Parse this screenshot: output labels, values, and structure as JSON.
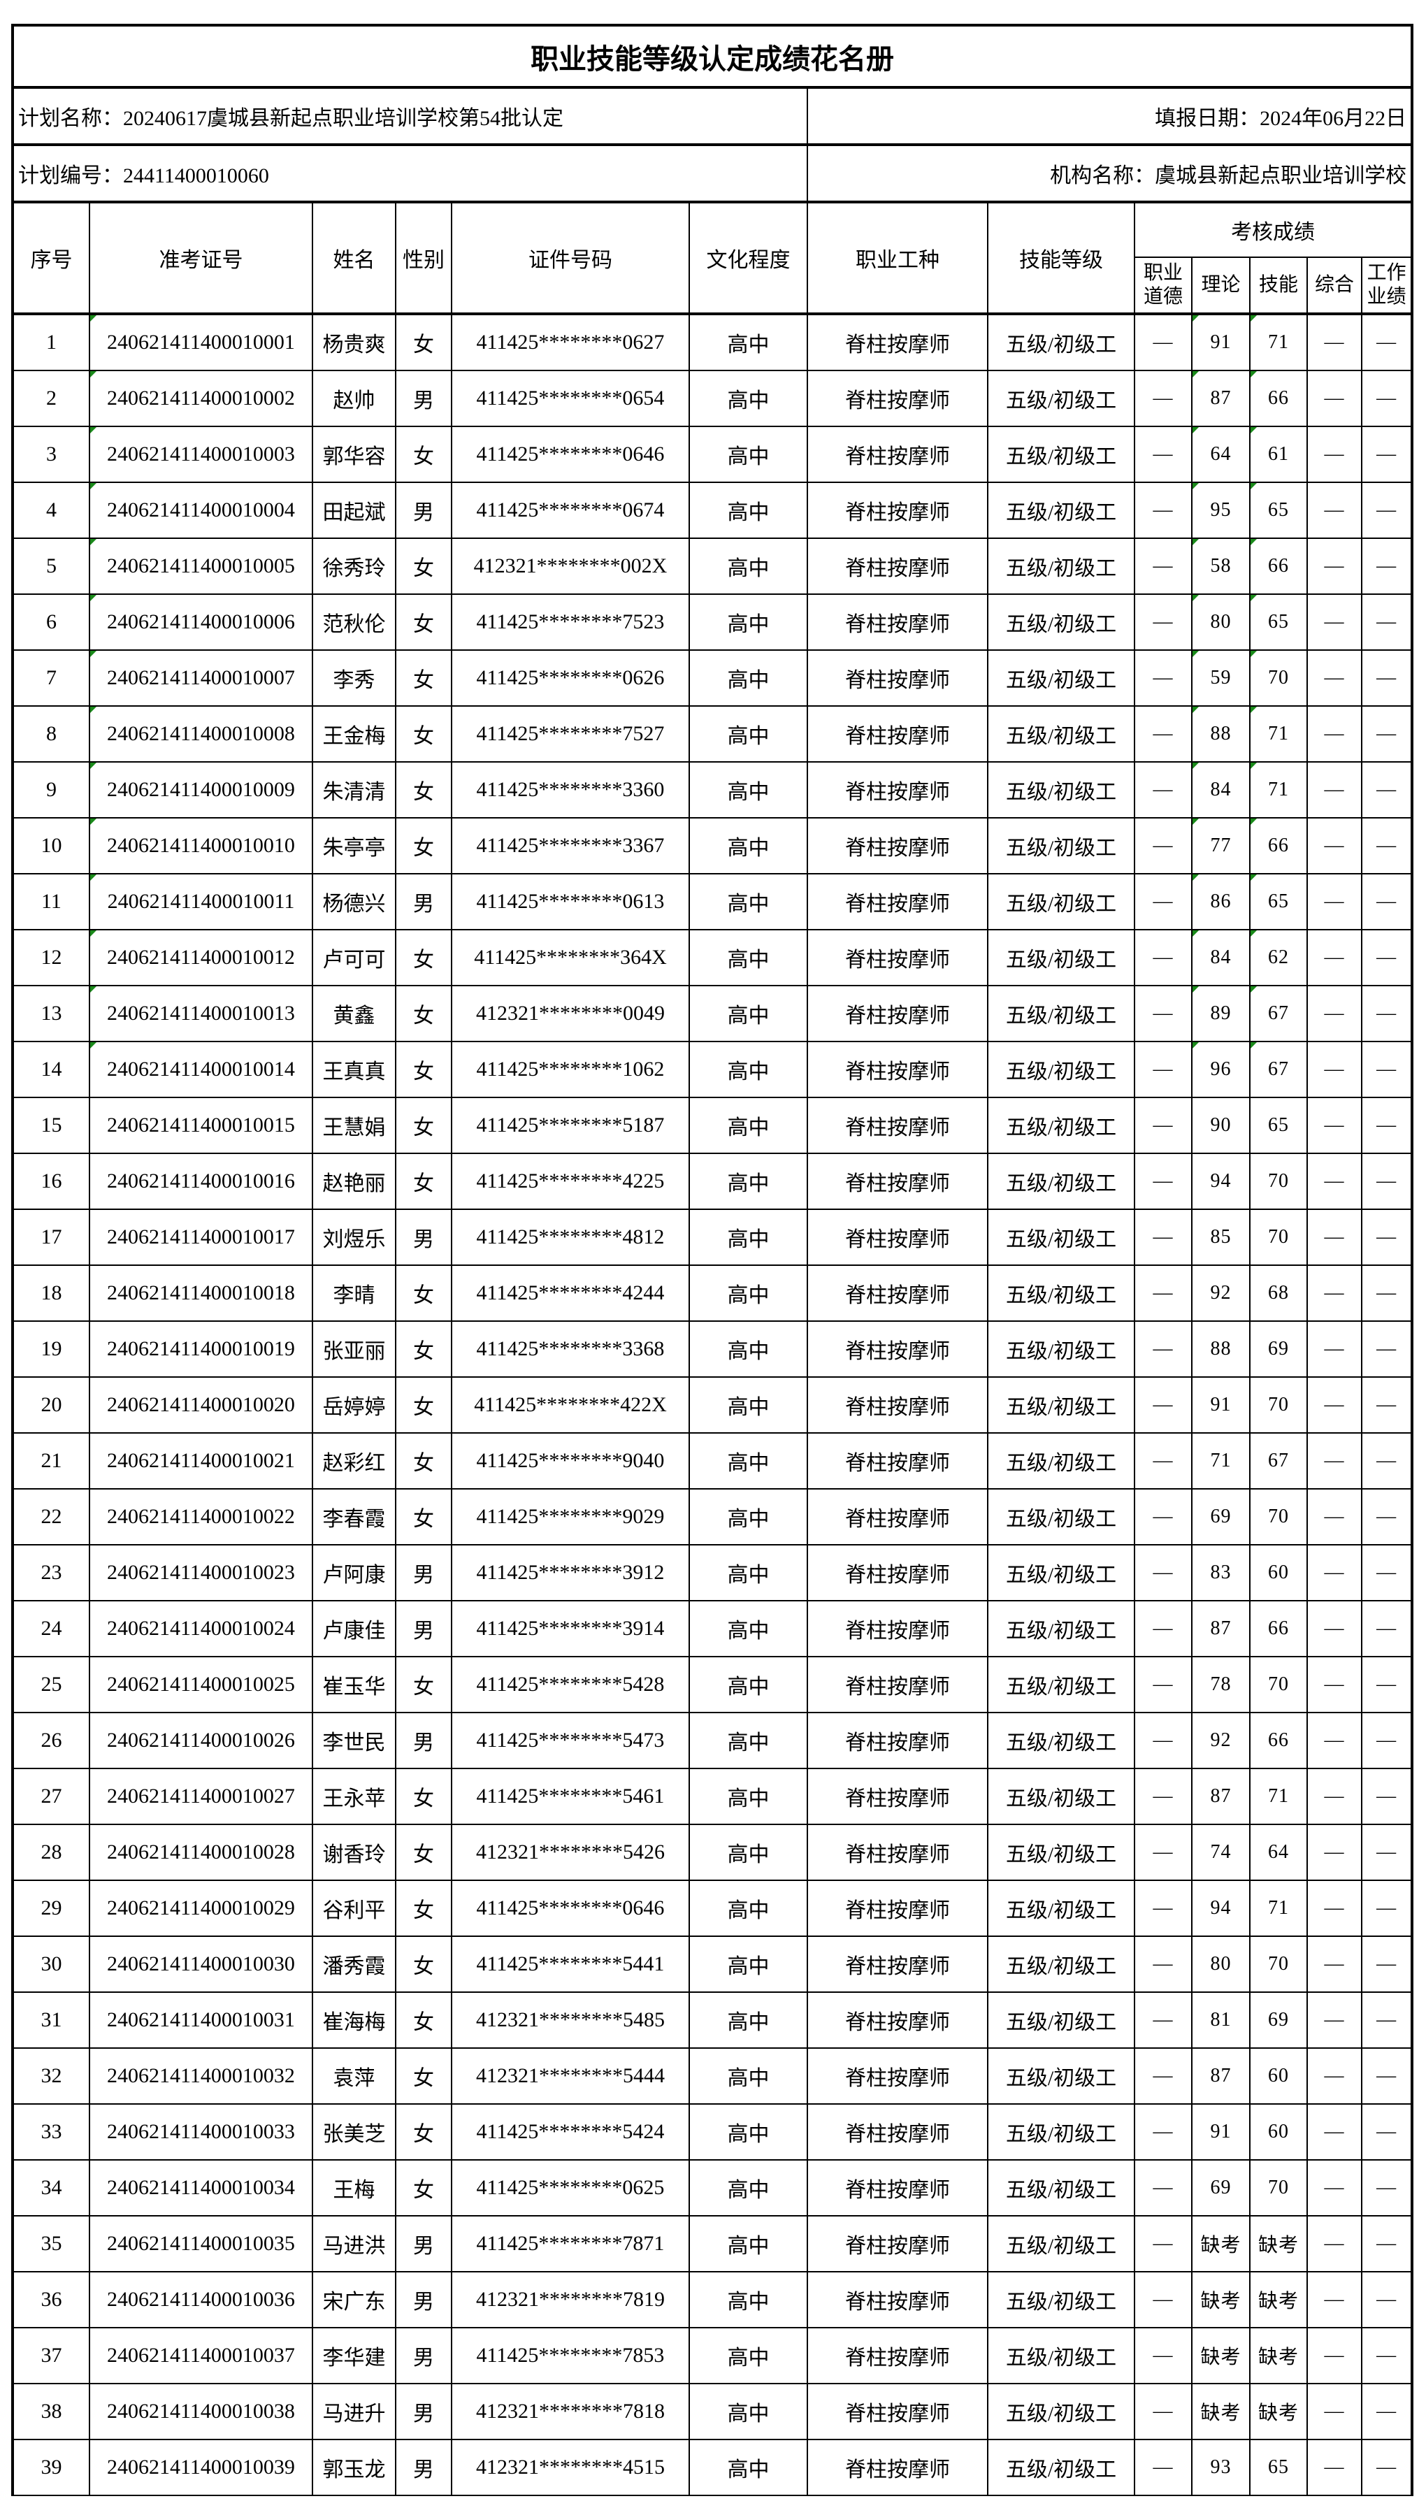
{
  "title": "职业技能等级认定成绩花名册",
  "plan_name": "计划名称：20240617虞城县新起点职业培训学校第54批认定",
  "report_date": "填报日期：2024年06月22日",
  "plan_number": "计划编号：24411400010060",
  "org_name": "机构名称：虞城县新起点职业培训学校",
  "headers": {
    "seq": "序号",
    "exam_no": "准考证号",
    "name": "姓名",
    "gender": "性别",
    "id_no": "证件号码",
    "education": "文化程度",
    "occupation": "职业工种",
    "skill_level": "技能等级",
    "scores": "考核成绩",
    "ethics": "职业道德",
    "theory": "理论",
    "skill": "技能",
    "overall": "综合",
    "performance": "工作业绩"
  },
  "marker_color": "#1a8a1a",
  "rows": [
    [
      "1",
      "240621411400010001",
      "杨贵爽",
      "女",
      "411425********0627",
      "高中",
      "脊柱按摩师",
      "五级/初级工",
      "—",
      "91",
      "71",
      "—",
      "—"
    ],
    [
      "2",
      "240621411400010002",
      "赵帅",
      "男",
      "411425********0654",
      "高中",
      "脊柱按摩师",
      "五级/初级工",
      "—",
      "87",
      "66",
      "—",
      "—"
    ],
    [
      "3",
      "240621411400010003",
      "郭华容",
      "女",
      "411425********0646",
      "高中",
      "脊柱按摩师",
      "五级/初级工",
      "—",
      "64",
      "61",
      "—",
      "—"
    ],
    [
      "4",
      "240621411400010004",
      "田起斌",
      "男",
      "411425********0674",
      "高中",
      "脊柱按摩师",
      "五级/初级工",
      "—",
      "95",
      "65",
      "—",
      "—"
    ],
    [
      "5",
      "240621411400010005",
      "徐秀玲",
      "女",
      "412321********002X",
      "高中",
      "脊柱按摩师",
      "五级/初级工",
      "—",
      "58",
      "66",
      "—",
      "—"
    ],
    [
      "6",
      "240621411400010006",
      "范秋伦",
      "女",
      "411425********7523",
      "高中",
      "脊柱按摩师",
      "五级/初级工",
      "—",
      "80",
      "65",
      "—",
      "—"
    ],
    [
      "7",
      "240621411400010007",
      "李秀",
      "女",
      "411425********0626",
      "高中",
      "脊柱按摩师",
      "五级/初级工",
      "—",
      "59",
      "70",
      "—",
      "—"
    ],
    [
      "8",
      "240621411400010008",
      "王金梅",
      "女",
      "411425********7527",
      "高中",
      "脊柱按摩师",
      "五级/初级工",
      "—",
      "88",
      "71",
      "—",
      "—"
    ],
    [
      "9",
      "240621411400010009",
      "朱清清",
      "女",
      "411425********3360",
      "高中",
      "脊柱按摩师",
      "五级/初级工",
      "—",
      "84",
      "71",
      "—",
      "—"
    ],
    [
      "10",
      "240621411400010010",
      "朱亭亭",
      "女",
      "411425********3367",
      "高中",
      "脊柱按摩师",
      "五级/初级工",
      "—",
      "77",
      "66",
      "—",
      "—"
    ],
    [
      "11",
      "240621411400010011",
      "杨德兴",
      "男",
      "411425********0613",
      "高中",
      "脊柱按摩师",
      "五级/初级工",
      "—",
      "86",
      "65",
      "—",
      "—"
    ],
    [
      "12",
      "240621411400010012",
      "卢可可",
      "女",
      "411425********364X",
      "高中",
      "脊柱按摩师",
      "五级/初级工",
      "—",
      "84",
      "62",
      "—",
      "—"
    ],
    [
      "13",
      "240621411400010013",
      "黄鑫",
      "女",
      "412321********0049",
      "高中",
      "脊柱按摩师",
      "五级/初级工",
      "—",
      "89",
      "67",
      "—",
      "—"
    ],
    [
      "14",
      "240621411400010014",
      "王真真",
      "女",
      "411425********1062",
      "高中",
      "脊柱按摩师",
      "五级/初级工",
      "—",
      "96",
      "67",
      "—",
      "—"
    ],
    [
      "15",
      "240621411400010015",
      "王慧娟",
      "女",
      "411425********5187",
      "高中",
      "脊柱按摩师",
      "五级/初级工",
      "—",
      "90",
      "65",
      "—",
      "—"
    ],
    [
      "16",
      "240621411400010016",
      "赵艳丽",
      "女",
      "411425********4225",
      "高中",
      "脊柱按摩师",
      "五级/初级工",
      "—",
      "94",
      "70",
      "—",
      "—"
    ],
    [
      "17",
      "240621411400010017",
      "刘煜乐",
      "男",
      "411425********4812",
      "高中",
      "脊柱按摩师",
      "五级/初级工",
      "—",
      "85",
      "70",
      "—",
      "—"
    ],
    [
      "18",
      "240621411400010018",
      "李晴",
      "女",
      "411425********4244",
      "高中",
      "脊柱按摩师",
      "五级/初级工",
      "—",
      "92",
      "68",
      "—",
      "—"
    ],
    [
      "19",
      "240621411400010019",
      "张亚丽",
      "女",
      "411425********3368",
      "高中",
      "脊柱按摩师",
      "五级/初级工",
      "—",
      "88",
      "69",
      "—",
      "—"
    ],
    [
      "20",
      "240621411400010020",
      "岳婷婷",
      "女",
      "411425********422X",
      "高中",
      "脊柱按摩师",
      "五级/初级工",
      "—",
      "91",
      "70",
      "—",
      "—"
    ],
    [
      "21",
      "240621411400010021",
      "赵彩红",
      "女",
      "411425********9040",
      "高中",
      "脊柱按摩师",
      "五级/初级工",
      "—",
      "71",
      "67",
      "—",
      "—"
    ],
    [
      "22",
      "240621411400010022",
      "李春霞",
      "女",
      "411425********9029",
      "高中",
      "脊柱按摩师",
      "五级/初级工",
      "—",
      "69",
      "70",
      "—",
      "—"
    ],
    [
      "23",
      "240621411400010023",
      "卢阿康",
      "男",
      "411425********3912",
      "高中",
      "脊柱按摩师",
      "五级/初级工",
      "—",
      "83",
      "60",
      "—",
      "—"
    ],
    [
      "24",
      "240621411400010024",
      "卢康佳",
      "男",
      "411425********3914",
      "高中",
      "脊柱按摩师",
      "五级/初级工",
      "—",
      "87",
      "66",
      "—",
      "—"
    ],
    [
      "25",
      "240621411400010025",
      "崔玉华",
      "女",
      "411425********5428",
      "高中",
      "脊柱按摩师",
      "五级/初级工",
      "—",
      "78",
      "70",
      "—",
      "—"
    ],
    [
      "26",
      "240621411400010026",
      "李世民",
      "男",
      "411425********5473",
      "高中",
      "脊柱按摩师",
      "五级/初级工",
      "—",
      "92",
      "66",
      "—",
      "—"
    ],
    [
      "27",
      "240621411400010027",
      "王永苹",
      "女",
      "411425********5461",
      "高中",
      "脊柱按摩师",
      "五级/初级工",
      "—",
      "87",
      "71",
      "—",
      "—"
    ],
    [
      "28",
      "240621411400010028",
      "谢香玲",
      "女",
      "412321********5426",
      "高中",
      "脊柱按摩师",
      "五级/初级工",
      "—",
      "74",
      "64",
      "—",
      "—"
    ],
    [
      "29",
      "240621411400010029",
      "谷利平",
      "女",
      "411425********0646",
      "高中",
      "脊柱按摩师",
      "五级/初级工",
      "—",
      "94",
      "71",
      "—",
      "—"
    ],
    [
      "30",
      "240621411400010030",
      "潘秀霞",
      "女",
      "411425********5441",
      "高中",
      "脊柱按摩师",
      "五级/初级工",
      "—",
      "80",
      "70",
      "—",
      "—"
    ],
    [
      "31",
      "240621411400010031",
      "崔海梅",
      "女",
      "412321********5485",
      "高中",
      "脊柱按摩师",
      "五级/初级工",
      "—",
      "81",
      "69",
      "—",
      "—"
    ],
    [
      "32",
      "240621411400010032",
      "袁萍",
      "女",
      "412321********5444",
      "高中",
      "脊柱按摩师",
      "五级/初级工",
      "—",
      "87",
      "60",
      "—",
      "—"
    ],
    [
      "33",
      "240621411400010033",
      "张美芝",
      "女",
      "411425********5424",
      "高中",
      "脊柱按摩师",
      "五级/初级工",
      "—",
      "91",
      "60",
      "—",
      "—"
    ],
    [
      "34",
      "240621411400010034",
      "王梅",
      "女",
      "411425********0625",
      "高中",
      "脊柱按摩师",
      "五级/初级工",
      "—",
      "69",
      "70",
      "—",
      "—"
    ],
    [
      "35",
      "240621411400010035",
      "马进洪",
      "男",
      "411425********7871",
      "高中",
      "脊柱按摩师",
      "五级/初级工",
      "—",
      "缺考",
      "缺考",
      "—",
      "—"
    ],
    [
      "36",
      "240621411400010036",
      "宋广东",
      "男",
      "412321********7819",
      "高中",
      "脊柱按摩师",
      "五级/初级工",
      "—",
      "缺考",
      "缺考",
      "—",
      "—"
    ],
    [
      "37",
      "240621411400010037",
      "李华建",
      "男",
      "411425********7853",
      "高中",
      "脊柱按摩师",
      "五级/初级工",
      "—",
      "缺考",
      "缺考",
      "—",
      "—"
    ],
    [
      "38",
      "240621411400010038",
      "马进升",
      "男",
      "412321********7818",
      "高中",
      "脊柱按摩师",
      "五级/初级工",
      "—",
      "缺考",
      "缺考",
      "—",
      "—"
    ],
    [
      "39",
      "240621411400010039",
      "郭玉龙",
      "男",
      "412321********4515",
      "高中",
      "脊柱按摩师",
      "五级/初级工",
      "—",
      "93",
      "65",
      "—",
      "—"
    ]
  ]
}
